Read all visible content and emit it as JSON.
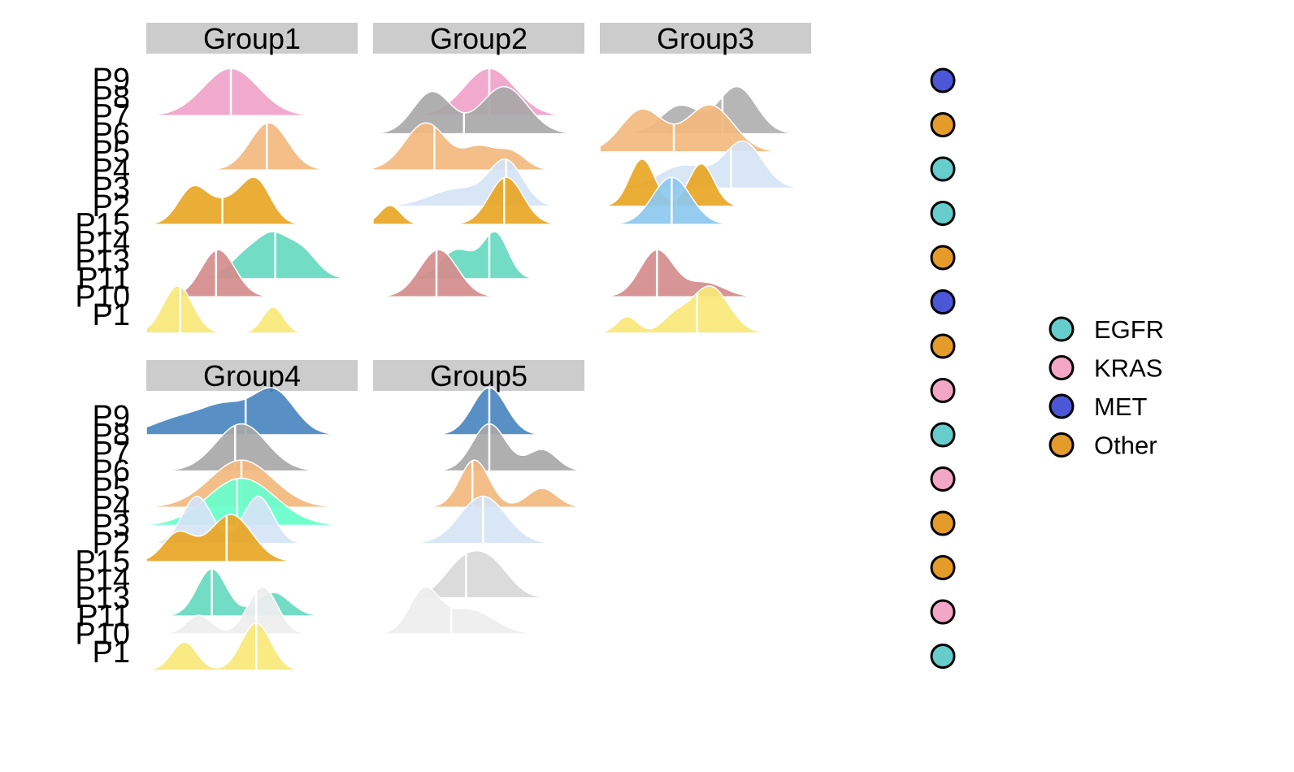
{
  "chart_data": {
    "type": "ridgeline",
    "row_labels": [
      "P9",
      "P8",
      "P7",
      "P6",
      "P5",
      "P4",
      "P3",
      "P2",
      "P15",
      "P14",
      "P13",
      "P11",
      "P10",
      "P1"
    ],
    "panels": [
      {
        "title": "Group1",
        "ridges": [
          {
            "row": "P8",
            "color": "#F0A3C9",
            "peaks": [
              [
                0.4,
                1.0,
                0.13
              ]
            ],
            "median": 0.4
          },
          {
            "row": "P5",
            "color": "#F2B97E",
            "peaks": [
              [
                0.58,
                1.0,
                0.09
              ]
            ],
            "median": 0.57
          },
          {
            "row": "P2",
            "color": "#E8A624",
            "peaks": [
              [
                0.22,
                0.55,
                0.07
              ],
              [
                0.52,
                0.65,
                0.07
              ],
              [
                0.38,
                0.3,
                0.08
              ]
            ],
            "median": 0.36
          },
          {
            "row": "P13",
            "color": "#67D9C0",
            "peaks": [
              [
                0.5,
                0.7,
                0.09
              ],
              [
                0.72,
                0.75,
                0.08
              ],
              [
                0.6,
                0.5,
                0.06
              ]
            ],
            "median": 0.61
          },
          {
            "row": "P11",
            "color": "#D48C8C",
            "peaks": [
              [
                0.34,
                1.0,
                0.08
              ]
            ],
            "median": 0.33
          },
          {
            "row": "P1",
            "color": "#F8E878",
            "peaks": [
              [
                0.15,
                1.0,
                0.07
              ],
              [
                0.6,
                0.55,
                0.05
              ]
            ],
            "median": 0.16
          }
        ]
      },
      {
        "title": "Group2",
        "ridges": [
          {
            "row": "P8",
            "color": "#F0A3C9",
            "peaks": [
              [
                0.55,
                1.0,
                0.12
              ]
            ],
            "median": 0.55
          },
          {
            "row": "P7",
            "color": "#A8A8A8",
            "peaks": [
              [
                0.28,
                0.8,
                0.09
              ],
              [
                0.62,
                0.9,
                0.11
              ]
            ],
            "median": 0.43
          },
          {
            "row": "P5",
            "color": "#F2B97E",
            "peaks": [
              [
                0.25,
                0.9,
                0.1
              ],
              [
                0.5,
                0.4,
                0.07
              ],
              [
                0.65,
                0.35,
                0.07
              ]
            ],
            "median": 0.29
          },
          {
            "row": "P3",
            "color": "#D5E4F5",
            "peaks": [
              [
                0.4,
                0.4,
                0.13
              ],
              [
                0.63,
                1.0,
                0.08
              ]
            ],
            "median": 0.63
          },
          {
            "row": "P2",
            "color": "#E8A624",
            "peaks": [
              [
                0.08,
                0.4,
                0.05
              ],
              [
                0.63,
                1.0,
                0.08
              ]
            ],
            "median": 0.62
          },
          {
            "row": "P13",
            "color": "#67D9C0",
            "peaks": [
              [
                0.4,
                0.65,
                0.08
              ],
              [
                0.58,
                1.0,
                0.06
              ]
            ],
            "median": 0.55
          },
          {
            "row": "P11",
            "color": "#D48C8C",
            "peaks": [
              [
                0.31,
                1.0,
                0.09
              ]
            ],
            "median": 0.3
          }
        ]
      },
      {
        "title": "Group3",
        "ridges": [
          {
            "row": "P7",
            "color": "#B0B0B0",
            "peaks": [
              [
                0.38,
                0.6,
                0.09
              ],
              [
                0.65,
                1.0,
                0.09
              ]
            ],
            "median": 0.58
          },
          {
            "row": "P6",
            "color": "#F2B97E",
            "peaks": [
              [
                0.2,
                0.9,
                0.1
              ],
              [
                0.52,
                1.0,
                0.11
              ]
            ],
            "median": 0.35
          },
          {
            "row": "P4",
            "color": "#D5E4F5",
            "peaks": [
              [
                0.4,
                0.5,
                0.12
              ],
              [
                0.68,
                1.0,
                0.09
              ]
            ],
            "median": 0.62
          },
          {
            "row": "P3",
            "color": "#E8A624",
            "peaks": [
              [
                0.2,
                1.0,
                0.06
              ],
              [
                0.48,
                0.9,
                0.06
              ]
            ],
            "median": 0.36
          },
          {
            "row": "P2",
            "color": "#8CC8EE",
            "peaks": [
              [
                0.34,
                1.0,
                0.09
              ]
            ],
            "median": 0.34
          },
          {
            "row": "P11",
            "color": "#D48C8C",
            "peaks": [
              [
                0.27,
                1.0,
                0.08
              ],
              [
                0.5,
                0.3,
                0.09
              ]
            ],
            "median": 0.27
          },
          {
            "row": "P1",
            "color": "#F8E878",
            "peaks": [
              [
                0.13,
                0.35,
                0.05
              ],
              [
                0.52,
                1.0,
                0.09
              ],
              [
                0.35,
                0.3,
                0.06
              ]
            ],
            "median": 0.46
          }
        ]
      },
      {
        "title": "Group4",
        "ridges": [
          {
            "row": "P9",
            "color": "#4A87C0",
            "peaks": [
              [
                0.18,
                0.4,
                0.14
              ],
              [
                0.6,
                1.0,
                0.1
              ],
              [
                0.38,
                0.5,
                0.1
              ]
            ],
            "median": 0.47
          },
          {
            "row": "P7",
            "color": "#A8A8A8",
            "peaks": [
              [
                0.45,
                1.0,
                0.12
              ]
            ],
            "median": 0.42
          },
          {
            "row": "P5",
            "color": "#F2B97E",
            "peaks": [
              [
                0.45,
                1.0,
                0.15
              ]
            ],
            "median": 0.45
          },
          {
            "row": "P4",
            "color": "#66FFCC",
            "peaks": [
              [
                0.45,
                1.0,
                0.16
              ]
            ],
            "median": 0.43
          },
          {
            "row": "P3",
            "color": "#D5E4F5",
            "peaks": [
              [
                0.24,
                1.0,
                0.07
              ],
              [
                0.53,
                1.0,
                0.07
              ]
            ],
            "median": 0.38
          },
          {
            "row": "P2",
            "color": "#E8A624",
            "peaks": [
              [
                0.4,
                1.0,
                0.1
              ],
              [
                0.15,
                0.6,
                0.07
              ]
            ],
            "median": 0.38
          },
          {
            "row": "P13",
            "color": "#67D9C0",
            "peaks": [
              [
                0.31,
                1.0,
                0.07
              ],
              [
                0.6,
                0.5,
                0.08
              ]
            ],
            "median": 0.31
          },
          {
            "row": "P11",
            "color": "#EEEEEE",
            "peaks": [
              [
                0.25,
                0.4,
                0.06
              ],
              [
                0.55,
                1.0,
                0.07
              ]
            ],
            "median": 0.52
          },
          {
            "row": "P1",
            "color": "#F8E878",
            "peaks": [
              [
                0.18,
                0.6,
                0.06
              ],
              [
                0.52,
                1.0,
                0.07
              ]
            ],
            "median": 0.52
          }
        ]
      },
      {
        "title": "Group5",
        "ridges": [
          {
            "row": "P9",
            "color": "#4A87C0",
            "peaks": [
              [
                0.55,
                1.0,
                0.08
              ]
            ],
            "median": 0.55
          },
          {
            "row": "P7",
            "color": "#A8A8A8",
            "peaks": [
              [
                0.55,
                1.0,
                0.08
              ],
              [
                0.8,
                0.45,
                0.07
              ]
            ],
            "median": 0.55
          },
          {
            "row": "P5",
            "color": "#F2B97E",
            "peaks": [
              [
                0.48,
                1.0,
                0.07
              ],
              [
                0.8,
                0.4,
                0.07
              ]
            ],
            "median": 0.47
          },
          {
            "row": "P3",
            "color": "#D5E4F5",
            "peaks": [
              [
                0.52,
                1.0,
                0.11
              ]
            ],
            "median": 0.52
          },
          {
            "row": "P14",
            "color": "#D8D8D8",
            "peaks": [
              [
                0.42,
                0.8,
                0.09
              ],
              [
                0.56,
                0.8,
                0.09
              ]
            ],
            "median": 0.44
          },
          {
            "row": "P11",
            "color": "#EEEEEE",
            "peaks": [
              [
                0.24,
                1.0,
                0.07
              ],
              [
                0.45,
                0.6,
                0.12
              ]
            ],
            "median": 0.37
          }
        ]
      }
    ],
    "marker_column": [
      "MET",
      "Other",
      "EGFR",
      "EGFR",
      "Other",
      "MET",
      "Other",
      "KRAS",
      "EGFR",
      "KRAS",
      "Other",
      "Other",
      "KRAS",
      "EGFR"
    ],
    "legend": [
      {
        "label": "EGFR",
        "color": "#66CCCC"
      },
      {
        "label": "KRAS",
        "color": "#F4A6C6"
      },
      {
        "label": "MET",
        "color": "#4B57D6"
      },
      {
        "label": "Other",
        "color": "#E49B2A"
      }
    ],
    "legend_position": "right"
  }
}
